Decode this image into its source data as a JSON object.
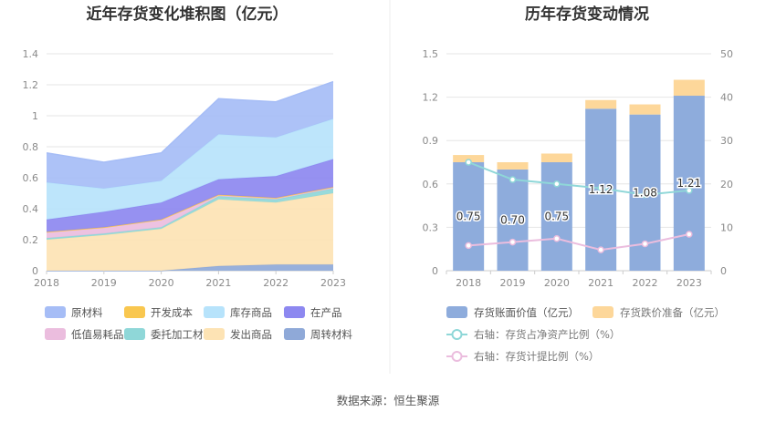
{
  "source": "数据来源：恒生聚源",
  "chart_data": [
    {
      "type": "area",
      "stacked": true,
      "title": "近年存货变化堆积图（亿元）",
      "x": [
        "2018",
        "2019",
        "2020",
        "2021",
        "2022",
        "2023"
      ],
      "ylim": [
        0,
        1.4
      ],
      "yticks": [
        "0",
        "0.2",
        "0.4",
        "0.6",
        "0.8",
        "1",
        "1.2",
        "1.4"
      ],
      "grid": true,
      "legend_position": "bottom",
      "series": [
        {
          "name": "周转材料",
          "color": "#8fa9d8",
          "values": [
            0.0,
            0.0,
            0.0,
            0.03,
            0.04,
            0.04
          ]
        },
        {
          "name": "发出商品",
          "color": "#fde3b4",
          "values": [
            0.2,
            0.23,
            0.27,
            0.43,
            0.4,
            0.46
          ]
        },
        {
          "name": "委托加工材料",
          "color": "#8fd7d8",
          "values": [
            0.01,
            0.01,
            0.01,
            0.02,
            0.02,
            0.03
          ]
        },
        {
          "name": "低值易耗品",
          "color": "#ebbdde",
          "values": [
            0.04,
            0.04,
            0.05,
            0.01,
            0.01,
            0.01
          ]
        },
        {
          "name": "开发成本",
          "color": "#f9c74f",
          "values": [
            0,
            0,
            0,
            0,
            0,
            0
          ]
        },
        {
          "name": "在产品",
          "color": "#8d88f0",
          "values": [
            0.08,
            0.1,
            0.11,
            0.1,
            0.14,
            0.18
          ]
        },
        {
          "name": "库存商品",
          "color": "#b7e3fb",
          "values": [
            0.24,
            0.15,
            0.14,
            0.29,
            0.25,
            0.26
          ]
        },
        {
          "name": "原材料",
          "color": "#a6bdf6",
          "values": [
            0.19,
            0.17,
            0.18,
            0.23,
            0.23,
            0.24
          ]
        }
      ],
      "legend_order": [
        "原材料",
        "开发成本",
        "库存商品",
        "在产品",
        "低值易耗品",
        "委托加工材料",
        "发出商品",
        "周转材料"
      ]
    },
    {
      "type": "bar",
      "title": "历年存货变动情况",
      "categories": [
        "2018",
        "2019",
        "2020",
        "2021",
        "2022",
        "2023"
      ],
      "ylim": [
        0,
        1.5
      ],
      "yticks": [
        "0",
        "0.3",
        "0.6",
        "0.9",
        "1.2",
        "1.5"
      ],
      "y2lim": [
        0,
        50
      ],
      "y2ticks": [
        "0",
        "10",
        "20",
        "30",
        "40",
        "50"
      ],
      "grid": true,
      "legend_position": "bottom",
      "series": [
        {
          "name": "存货账面价值（亿元）",
          "type": "bar",
          "stack": "inv",
          "color": "#8eacdc",
          "values": [
            0.75,
            0.7,
            0.75,
            1.12,
            1.08,
            1.21
          ],
          "labels": [
            "0.75",
            "0.70",
            "0.75",
            "1.12",
            "1.08",
            "1.21"
          ]
        },
        {
          "name": "存货跌价准备（亿元）",
          "type": "bar",
          "stack": "inv",
          "color": "#fdd79a",
          "values": [
            0.05,
            0.05,
            0.06,
            0.06,
            0.07,
            0.11
          ]
        },
        {
          "name": "右轴：存货占净资产比例（%）",
          "type": "line",
          "axis": "right",
          "color": "#8fd7d8",
          "values": [
            25.0,
            21.0,
            20.0,
            19.0,
            17.5,
            18.5
          ]
        },
        {
          "name": "右轴：存货计提比例（%）",
          "type": "line",
          "axis": "right",
          "color": "#ebbdde",
          "values": [
            5.8,
            6.6,
            7.4,
            4.8,
            6.2,
            8.4
          ]
        }
      ]
    }
  ]
}
